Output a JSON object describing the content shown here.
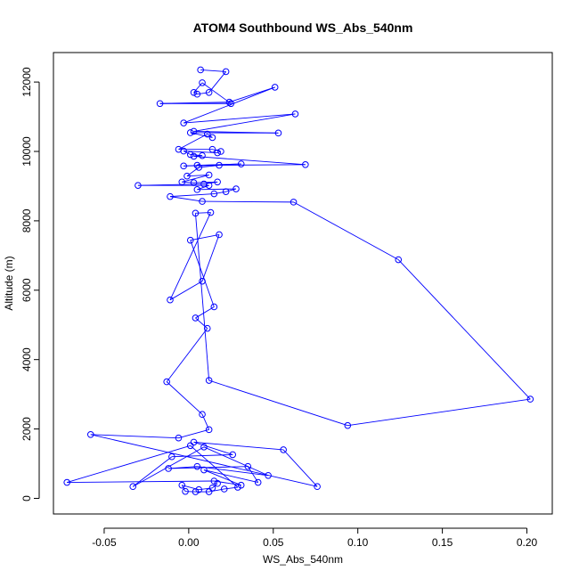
{
  "chart_data": {
    "type": "line",
    "title": "ATOM4 Southbound WS_Abs_540nm",
    "xlabel": "WS_Abs_540nm",
    "ylabel": "Altitude (m)",
    "xlim": [
      -0.08,
      0.215
    ],
    "ylim": [
      -450,
      12850
    ],
    "x_ticks": [
      -0.05,
      0.0,
      0.05,
      0.1,
      0.15,
      0.2
    ],
    "x_tick_labels": [
      "-0.05",
      "0.00",
      "0.05",
      "0.10",
      "0.15",
      "0.20"
    ],
    "y_ticks": [
      0,
      2000,
      4000,
      6000,
      8000,
      10000,
      12000
    ],
    "y_tick_labels": [
      "0",
      "2000",
      "4000",
      "6000",
      "8000",
      "10000",
      "12000"
    ],
    "grid": false,
    "legend": "none",
    "series": [
      {
        "style": "lines+open-circles",
        "color": "#0000ff",
        "points": [
          [
            0.007,
            12350
          ],
          [
            0.022,
            12300
          ],
          [
            0.012,
            11700
          ],
          [
            0.005,
            11650
          ],
          [
            0.003,
            11700
          ],
          [
            0.008,
            11980
          ],
          [
            0.025,
            11380
          ],
          [
            -0.017,
            11380
          ],
          [
            0.024,
            11420
          ],
          [
            0.051,
            11850
          ],
          [
            -0.003,
            10820
          ],
          [
            0.063,
            11080
          ],
          [
            0.003,
            10580
          ],
          [
            0.053,
            10530
          ],
          [
            0.001,
            10540
          ],
          [
            0.014,
            10400
          ],
          [
            0.011,
            10500
          ],
          [
            -0.006,
            10060
          ],
          [
            0.014,
            10060
          ],
          [
            0.019,
            10000
          ],
          [
            0.017,
            9960
          ],
          [
            -0.003,
            10010
          ],
          [
            0.001,
            9910
          ],
          [
            0.008,
            9880
          ],
          [
            0.003,
            9860
          ],
          [
            0.069,
            9620
          ],
          [
            0.005,
            9600
          ],
          [
            0.031,
            9640
          ],
          [
            -0.003,
            9580
          ],
          [
            0.018,
            9600
          ],
          [
            0.006,
            9540
          ],
          [
            -0.001,
            9290
          ],
          [
            0.012,
            9320
          ],
          [
            -0.004,
            9120
          ],
          [
            0.003,
            9100
          ],
          [
            0.017,
            9120
          ],
          [
            0.009,
            9060
          ],
          [
            -0.03,
            9020
          ],
          [
            0.012,
            9020
          ],
          [
            0.005,
            8900
          ],
          [
            0.028,
            8920
          ],
          [
            0.022,
            8840
          ],
          [
            0.015,
            8780
          ],
          [
            -0.011,
            8700
          ],
          [
            0.008,
            8560
          ],
          [
            0.062,
            8540
          ],
          [
            0.124,
            6880
          ],
          [
            0.202,
            2860
          ],
          [
            0.094,
            2100
          ],
          [
            0.012,
            3400
          ],
          [
            0.004,
            8220
          ],
          [
            0.013,
            8240
          ],
          [
            -0.011,
            5720
          ],
          [
            0.008,
            6260
          ],
          [
            0.018,
            7600
          ],
          [
            0.001,
            7440
          ],
          [
            0.015,
            5520
          ],
          [
            0.004,
            5200
          ],
          [
            0.011,
            4900
          ],
          [
            -0.013,
            3360
          ],
          [
            0.008,
            2420
          ],
          [
            0.012,
            1980
          ],
          [
            -0.006,
            1740
          ],
          [
            -0.058,
            1840
          ],
          [
            0.076,
            340
          ],
          [
            0.056,
            1400
          ],
          [
            0.003,
            1620
          ],
          [
            0.026,
            1260
          ],
          [
            -0.01,
            1200
          ],
          [
            -0.033,
            340
          ],
          [
            0.009,
            1480
          ],
          [
            0.047,
            660
          ],
          [
            0.005,
            920
          ],
          [
            -0.012,
            860
          ],
          [
            0.035,
            920
          ],
          [
            0.041,
            460
          ],
          [
            0.009,
            820
          ],
          [
            0.031,
            380
          ],
          [
            0.015,
            500
          ],
          [
            -0.072,
            460
          ],
          [
            0.001,
            1520
          ],
          [
            0.029,
            320
          ],
          [
            0.021,
            270
          ],
          [
            0.012,
            190
          ],
          [
            0.004,
            190
          ],
          [
            -0.002,
            200
          ],
          [
            -0.004,
            380
          ],
          [
            0.006,
            250
          ],
          [
            0.014,
            300
          ],
          [
            0.017,
            430
          ]
        ]
      }
    ]
  }
}
